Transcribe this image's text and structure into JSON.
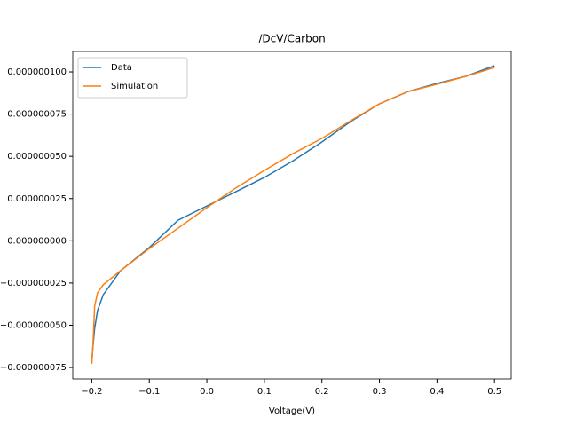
{
  "chart_data": {
    "type": "line",
    "title": "/DcV/Carbon",
    "x_label": "Voltage(V)",
    "x": [
      -0.2,
      -0.198,
      -0.195,
      -0.19,
      -0.18,
      -0.15,
      -0.1,
      -0.05,
      0,
      0.05,
      0.1,
      0.15,
      0.2,
      0.25,
      0.3,
      0.35,
      0.4,
      0.45,
      0.5
    ],
    "series": [
      {
        "name": "Data",
        "color": "#1f77b4",
        "values": [
          -7.18e-08,
          -6.3e-08,
          -5.19e-08,
          -4.14e-08,
          -3.19e-08,
          -1.77e-08,
          -4e-09,
          1.22e-08,
          2.06e-08,
          2.9e-08,
          3.75e-08,
          4.74e-08,
          5.85e-08,
          7.06e-08,
          8.11e-08,
          8.84e-08,
          9.32e-08,
          9.74e-08,
          1.037e-07
        ]
      },
      {
        "name": "Simulation",
        "color": "#ff7f0e",
        "values": [
          -7.29e-08,
          -6.24e-08,
          -3.87e-08,
          -3.08e-08,
          -2.6e-08,
          -1.77e-08,
          -4.6e-09,
          7.5e-09,
          1.96e-08,
          3.12e-08,
          4.17e-08,
          5.17e-08,
          6.06e-08,
          7.11e-08,
          8.11e-08,
          8.84e-08,
          9.27e-08,
          9.74e-08,
          1.026e-07
        ]
      }
    ],
    "xlim": [
      -0.233,
      0.529
    ],
    "xticks": [
      {
        "value": -0.2,
        "label": "−0.2"
      },
      {
        "value": -0.1,
        "label": "−0.1"
      },
      {
        "value": 0,
        "label": "0.0"
      },
      0.1,
      0.2,
      0.3,
      0.4,
      0.5
    ],
    "ylim": [
      -8.18e-08,
      1.121e-07
    ],
    "yticks": [
      {
        "value": -7.5e-08,
        "label": "−0.000000075"
      },
      {
        "value": -5e-08,
        "label": "−0.000000050"
      },
      {
        "value": -2.5e-08,
        "label": "−0.000000025"
      },
      {
        "value": 0,
        "label": "0.000000000"
      },
      {
        "value": 2.5e-08,
        "label": "0.000000025"
      },
      {
        "value": 5e-08,
        "label": "0.000000050"
      },
      {
        "value": 7.5e-08,
        "label": "0.000000075"
      },
      {
        "value": 1e-07,
        "label": "0.000000100"
      }
    ],
    "legend": "upper left"
  }
}
